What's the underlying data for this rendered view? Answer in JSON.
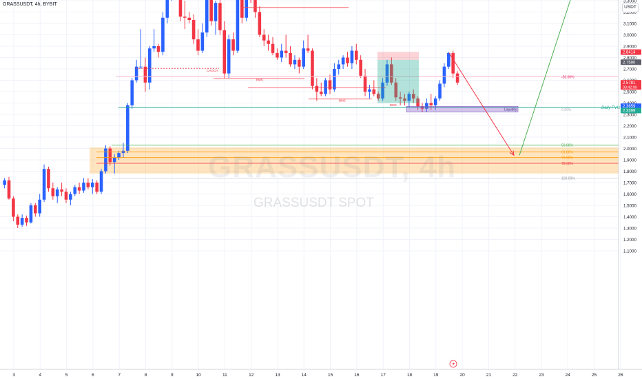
{
  "header": {
    "symbol": "GRASSUSDT",
    "interval": "4h",
    "exchange": "BYBIT"
  },
  "unit_label": "USDT",
  "watermark": {
    "main": "GRASSUSDT, 4h",
    "sub": "GRASSUSDT SPOT"
  },
  "colors": {
    "up": "#2962ff",
    "down": "#f23645",
    "grid": "#f0f3fa",
    "axis_text": "#131722"
  },
  "chart_data": {
    "type": "candlestick",
    "ylim": [
      1.05,
      4.15
    ],
    "y_ticks": [
      "1.1000",
      "1.2000",
      "1.3000",
      "1.4000",
      "1.5000",
      "1.6000",
      "1.7000",
      "1.8000",
      "1.9000",
      "2.0000",
      "2.1000",
      "2.2000",
      "2.3000",
      "2.4000",
      "2.5000",
      "2.6000",
      "2.7000",
      "2.8000",
      "2.9000",
      "3.0000",
      "3.1000",
      "3.2000",
      "3.3000",
      "3.4000",
      "3.5000",
      "3.6000",
      "3.7000",
      "3.8000",
      "3.9000",
      "4.0000",
      "4.1000"
    ],
    "x_ticks": [
      "3",
      "4",
      "5",
      "6",
      "7",
      "8",
      "9",
      "10",
      "11",
      "12",
      "13",
      "14",
      "15",
      "16",
      "17",
      "18",
      "19",
      "20",
      "21",
      "22",
      "23",
      "24",
      "25",
      "26"
    ],
    "candles": [
      [
        1.68,
        1.74,
        1.65,
        1.72
      ],
      [
        1.72,
        1.75,
        1.55,
        1.56
      ],
      [
        1.56,
        1.58,
        1.36,
        1.4
      ],
      [
        1.4,
        1.42,
        1.3,
        1.33
      ],
      [
        1.33,
        1.42,
        1.31,
        1.39
      ],
      [
        1.39,
        1.41,
        1.32,
        1.35
      ],
      [
        1.35,
        1.52,
        1.34,
        1.5
      ],
      [
        1.5,
        1.52,
        1.4,
        1.43
      ],
      [
        1.43,
        1.6,
        1.4,
        1.55
      ],
      [
        1.55,
        1.86,
        1.53,
        1.82
      ],
      [
        1.82,
        1.84,
        1.62,
        1.65
      ],
      [
        1.65,
        1.7,
        1.55,
        1.58
      ],
      [
        1.58,
        1.66,
        1.52,
        1.64
      ],
      [
        1.64,
        1.7,
        1.58,
        1.62
      ],
      [
        1.62,
        1.65,
        1.52,
        1.55
      ],
      [
        1.55,
        1.62,
        1.5,
        1.6
      ],
      [
        1.6,
        1.68,
        1.58,
        1.66
      ],
      [
        1.66,
        1.7,
        1.6,
        1.63
      ],
      [
        1.63,
        1.74,
        1.61,
        1.7
      ],
      [
        1.7,
        1.74,
        1.64,
        1.66
      ],
      [
        1.66,
        1.73,
        1.6,
        1.7
      ],
      [
        1.7,
        1.72,
        1.6,
        1.62
      ],
      [
        1.62,
        1.82,
        1.6,
        1.8
      ],
      [
        1.8,
        2.03,
        1.78,
        2.0
      ],
      [
        2.0,
        2.02,
        1.85,
        1.88
      ],
      [
        1.88,
        1.95,
        1.78,
        1.92
      ],
      [
        1.92,
        1.98,
        1.9,
        1.96
      ],
      [
        1.96,
        2.05,
        1.92,
        1.98
      ],
      [
        1.98,
        2.4,
        1.96,
        2.38
      ],
      [
        2.38,
        2.62,
        2.35,
        2.6
      ],
      [
        2.6,
        2.78,
        2.58,
        2.72
      ],
      [
        2.72,
        3.05,
        2.7,
        2.72
      ],
      [
        2.72,
        2.8,
        2.5,
        2.58
      ],
      [
        2.58,
        2.9,
        2.52,
        2.88
      ],
      [
        2.88,
        3.05,
        2.85,
        2.9
      ],
      [
        2.9,
        2.92,
        2.8,
        2.85
      ],
      [
        2.85,
        3.2,
        2.82,
        3.15
      ],
      [
        3.15,
        3.4,
        3.1,
        3.35
      ],
      [
        3.35,
        3.88,
        3.3,
        3.8
      ],
      [
        3.8,
        3.82,
        3.38,
        3.42
      ],
      [
        3.42,
        3.45,
        3.12,
        3.16
      ],
      [
        3.16,
        3.3,
        3.05,
        3.15
      ],
      [
        3.15,
        3.2,
        3.1,
        3.13
      ],
      [
        3.13,
        3.18,
        2.92,
        2.96
      ],
      [
        2.96,
        3.05,
        2.82,
        2.86
      ],
      [
        2.86,
        3.1,
        2.84,
        3.02
      ],
      [
        3.02,
        3.38,
        2.98,
        3.35
      ],
      [
        3.35,
        3.38,
        3.08,
        3.12
      ],
      [
        3.12,
        3.3,
        3.0,
        3.28
      ],
      [
        3.28,
        3.36,
        3.0,
        3.04
      ],
      [
        3.04,
        3.12,
        2.62,
        2.66
      ],
      [
        2.66,
        3.0,
        2.62,
        2.96
      ],
      [
        2.96,
        3.02,
        2.82,
        2.86
      ],
      [
        2.86,
        3.55,
        2.84,
        3.5
      ],
      [
        3.5,
        3.58,
        3.1,
        3.15
      ],
      [
        3.15,
        3.68,
        3.12,
        3.45
      ],
      [
        3.45,
        3.5,
        3.28,
        3.32
      ],
      [
        3.32,
        3.45,
        3.15,
        3.2
      ],
      [
        3.2,
        3.25,
        2.98,
        3.0
      ],
      [
        3.0,
        3.05,
        2.9,
        2.95
      ],
      [
        2.95,
        3.0,
        2.86,
        2.92
      ],
      [
        2.92,
        2.98,
        2.82,
        2.84
      ],
      [
        2.84,
        2.88,
        2.78,
        2.8
      ],
      [
        2.8,
        2.92,
        2.76,
        2.86
      ],
      [
        2.86,
        3.0,
        2.8,
        2.84
      ],
      [
        2.84,
        2.9,
        2.72,
        2.74
      ],
      [
        2.74,
        2.82,
        2.7,
        2.78
      ],
      [
        2.78,
        2.8,
        2.66,
        2.72
      ],
      [
        2.72,
        2.95,
        2.7,
        2.88
      ],
      [
        2.88,
        3.0,
        2.84,
        2.86
      ],
      [
        2.86,
        2.88,
        2.52,
        2.55
      ],
      [
        2.55,
        2.62,
        2.42,
        2.5
      ],
      [
        2.5,
        2.58,
        2.46,
        2.48
      ],
      [
        2.48,
        2.62,
        2.46,
        2.6
      ],
      [
        2.6,
        2.65,
        2.48,
        2.52
      ],
      [
        2.52,
        2.75,
        2.5,
        2.7
      ],
      [
        2.7,
        2.78,
        2.65,
        2.74
      ],
      [
        2.74,
        2.82,
        2.7,
        2.8
      ],
      [
        2.8,
        2.85,
        2.72,
        2.75
      ],
      [
        2.75,
        2.9,
        2.7,
        2.86
      ],
      [
        2.86,
        2.92,
        2.74,
        2.78
      ],
      [
        2.78,
        2.82,
        2.62,
        2.64
      ],
      [
        2.64,
        2.7,
        2.46,
        2.5
      ],
      [
        2.5,
        2.56,
        2.44,
        2.52
      ],
      [
        2.52,
        2.6,
        2.46,
        2.48
      ],
      [
        2.48,
        2.5,
        2.42,
        2.44
      ],
      [
        2.44,
        2.62,
        2.42,
        2.58
      ],
      [
        2.58,
        2.78,
        2.55,
        2.74
      ],
      [
        2.74,
        2.8,
        2.56,
        2.58
      ],
      [
        2.58,
        2.62,
        2.42,
        2.45
      ],
      [
        2.45,
        2.5,
        2.38,
        2.44
      ],
      [
        2.44,
        2.48,
        2.38,
        2.42
      ],
      [
        2.42,
        2.5,
        2.36,
        2.48
      ],
      [
        2.48,
        2.52,
        2.4,
        2.44
      ],
      [
        2.44,
        2.46,
        2.34,
        2.37
      ],
      [
        2.37,
        2.4,
        2.32,
        2.35
      ],
      [
        2.35,
        2.44,
        2.32,
        2.4
      ],
      [
        2.4,
        2.48,
        2.34,
        2.38
      ],
      [
        2.38,
        2.46,
        2.34,
        2.44
      ],
      [
        2.44,
        2.6,
        2.42,
        2.57
      ],
      [
        2.57,
        2.75,
        2.54,
        2.72
      ],
      [
        2.72,
        2.85,
        2.7,
        2.84
      ],
      [
        2.84,
        2.86,
        2.62,
        2.66
      ],
      [
        2.66,
        2.68,
        2.56,
        2.58
      ]
    ],
    "levels": [
      {
        "name": "Daily FVG",
        "value": 2.362,
        "color": "#22ab94"
      },
      {
        "name": "-50.00%",
        "value": 2.63,
        "color": "#e91e63"
      },
      {
        "name": "50.00%",
        "value": 2.03,
        "color": "#4caf50"
      },
      {
        "name": "61.80%",
        "value": 1.97,
        "color": "#ff9800"
      },
      {
        "name": "70.50%",
        "value": 1.92,
        "color": "#ff9800"
      },
      {
        "name": "78.60%",
        "value": 1.87,
        "color": "#f23645"
      },
      {
        "name": "100.00%",
        "value": 1.74,
        "color": "#9598a1"
      },
      {
        "name": "0.00%",
        "value": 2.362,
        "color": "#9598a1"
      }
    ],
    "structure_labels": [
      "CHOCH",
      "BMS",
      "BMS",
      "BMS"
    ],
    "liquidity_label": "Liquidity",
    "price_tags": [
      {
        "value": 2.8414,
        "label": "2.8414",
        "color": "#f23645"
      },
      {
        "value": 2.759,
        "label": "2.7590",
        "color": "#5d606b"
      },
      {
        "value": 2.5781,
        "label": "2.5781",
        "sublabel": "03:42:09",
        "color": "#f23645"
      },
      {
        "value": 2.3659,
        "label": "2.3659",
        "color": "#2962ff"
      },
      {
        "value": 2.3399,
        "label": "2.3399",
        "color": "#22ab94"
      }
    ]
  }
}
